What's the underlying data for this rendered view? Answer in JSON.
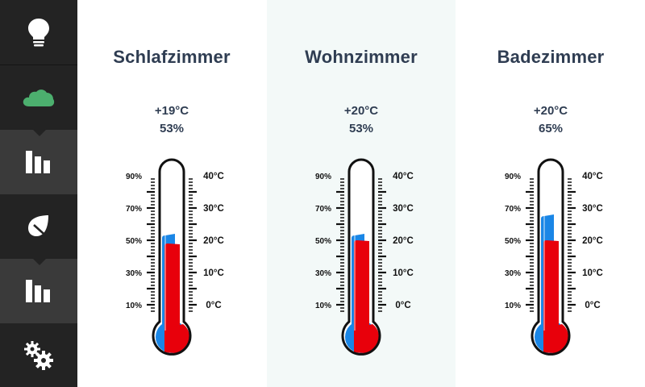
{
  "sidebar": {
    "items": [
      {
        "icon": "lightbulb-icon",
        "active": false
      },
      {
        "icon": "cloud-icon",
        "active": false,
        "color": "#4caf6e"
      },
      {
        "icon": "bar-chart-icon",
        "active": true
      },
      {
        "icon": "leaf-icon",
        "active": false
      },
      {
        "icon": "bar-chart-icon",
        "active": true
      },
      {
        "icon": "gears-icon",
        "active": false
      }
    ]
  },
  "colors": {
    "temperature": "#e8000b",
    "humidity": "#1a86e6",
    "title": "#2f3d52"
  },
  "rooms": [
    {
      "name": "Schlafzimmer",
      "temperature_label": "+19°C",
      "humidity_label": "53%",
      "temperature": 19,
      "humidity": 53
    },
    {
      "name": "Wohnzimmer",
      "temperature_label": "+20°C",
      "humidity_label": "53%",
      "temperature": 20,
      "humidity": 53
    },
    {
      "name": "Badezimmer",
      "temperature_label": "+20°C",
      "humidity_label": "65%",
      "temperature": 20,
      "humidity": 65
    }
  ],
  "scale": {
    "humidity_ticks": [
      "90%",
      "70%",
      "50%",
      "30%",
      "10%"
    ],
    "temperature_ticks": [
      "40°C",
      "30°C",
      "20°C",
      "10°C",
      "0°C"
    ]
  }
}
